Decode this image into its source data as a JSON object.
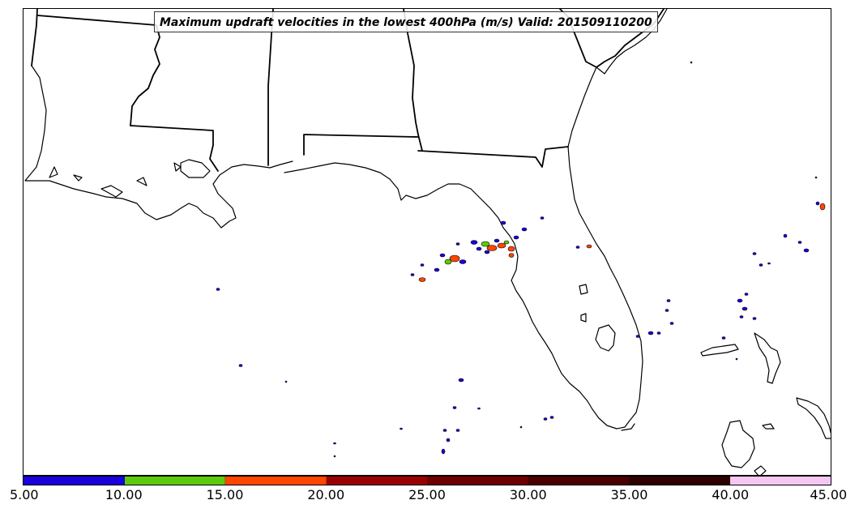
{
  "title": "Maximum updraft velocities in the lowest 400hPa (m/s) Valid: 201509110200",
  "colorbar": {
    "colors": [
      "#1a00dd",
      "#5ccc0a",
      "#ff4500",
      "#9a0000",
      "#6e0000",
      "#4a0000",
      "#2e0000",
      "#f6c6f2",
      "#fff0fb"
    ],
    "ticks": [
      "5.00",
      "10.00",
      "15.00",
      "20.00",
      "25.00",
      "30.00",
      "35.00",
      "40.00",
      "45.00"
    ]
  },
  "storm_colors": {
    "weak": "#1a00dd",
    "moderate": "#5ccc0a",
    "strong": "#ff4500",
    "outline": "#000000"
  }
}
